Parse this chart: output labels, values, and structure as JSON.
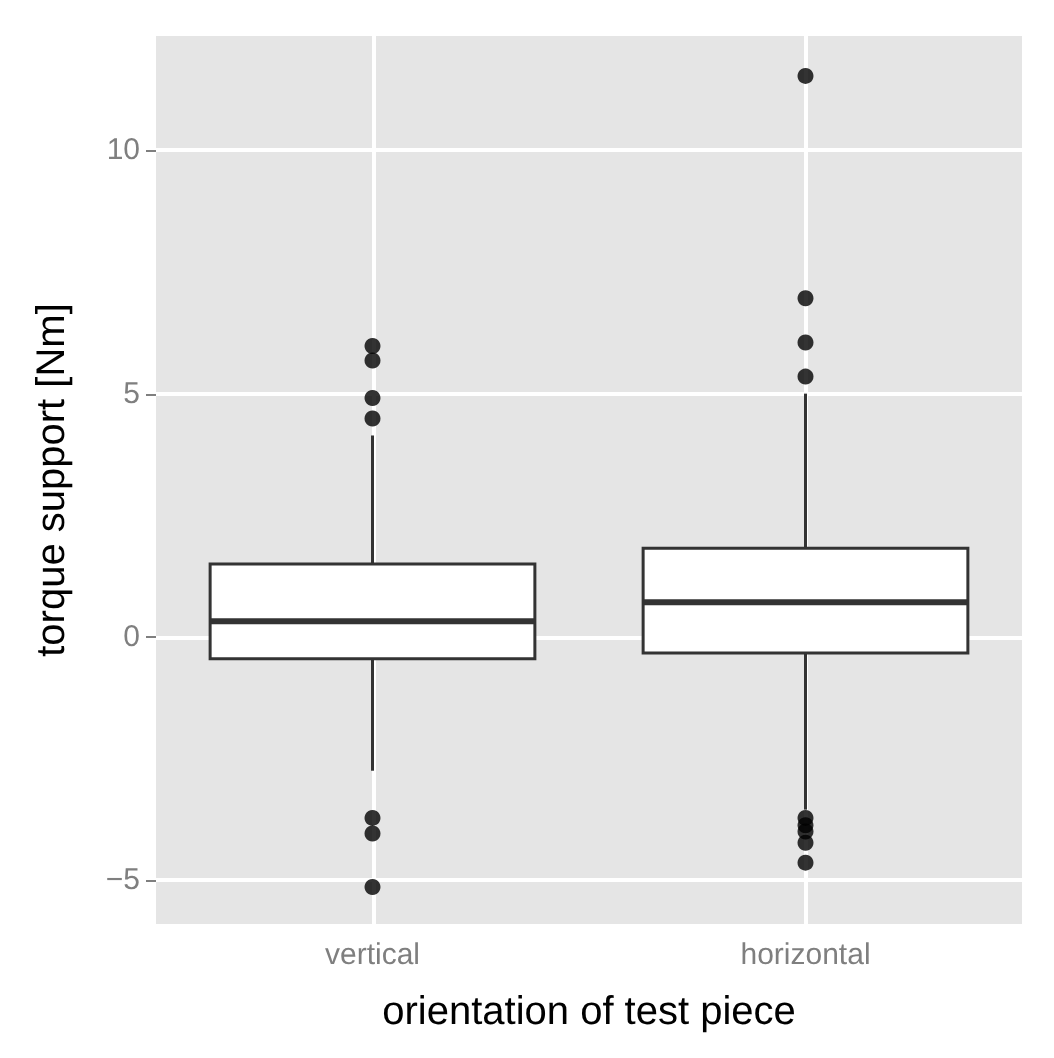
{
  "chart_data": {
    "type": "box",
    "xlabel": "orientation of test piece",
    "ylabel": "torque support [Nm]",
    "categories": [
      "vertical",
      "horizontal"
    ],
    "boxes": [
      {
        "low": -2.75,
        "q1": -0.45,
        "median": 0.32,
        "q3": 1.5,
        "high": 4.14,
        "outliers": [
          5.98,
          5.68,
          4.91,
          4.49,
          -3.72,
          -4.04,
          -5.14
        ]
      },
      {
        "low": -3.55,
        "q1": -0.33,
        "median": 0.71,
        "q3": 1.82,
        "high": 5.0,
        "outliers": [
          11.53,
          6.96,
          6.05,
          5.35,
          -3.72,
          -3.87,
          -4.0,
          -4.23,
          -4.64
        ]
      }
    ],
    "ylim": [
      -5.9,
      12.35
    ],
    "yticks": [
      -5,
      0,
      5,
      10
    ],
    "grid": true
  }
}
